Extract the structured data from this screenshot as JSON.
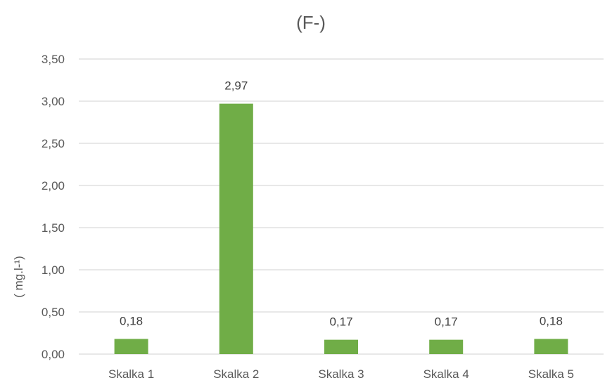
{
  "chart_data": {
    "type": "bar",
    "title": "(F-)",
    "xlabel": "",
    "ylabel": "( mg.l-¹)",
    "categories": [
      "Skalka 1",
      "Skalka 2",
      "Skalka 3",
      "Skalka 4",
      "Skalka 5"
    ],
    "values": [
      0.18,
      2.97,
      0.17,
      0.17,
      0.18
    ],
    "data_labels": [
      "0,18",
      "2,97",
      "0,17",
      "0,17",
      "0,18"
    ],
    "ylim": [
      0,
      3.5
    ],
    "yticks": [
      0,
      0.5,
      1.0,
      1.5,
      2.0,
      2.5,
      3.0,
      3.5
    ],
    "ytick_labels": [
      "0,00",
      "0,50",
      "1,00",
      "1,50",
      "2,00",
      "2,50",
      "3,00",
      "3,50"
    ],
    "grid": true,
    "legend": "none",
    "colors": {
      "bar": "#70ad47",
      "grid": "#d9d9d9",
      "axis_text": "#595959",
      "title_text": "#595959",
      "label_text": "#404040"
    }
  }
}
